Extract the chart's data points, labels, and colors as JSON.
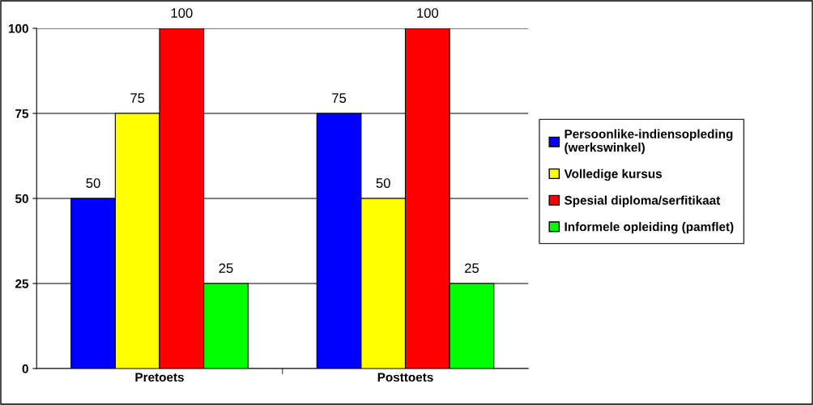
{
  "chart_data": {
    "type": "bar",
    "categories": [
      "Pretoets",
      "Posttoets"
    ],
    "series": [
      {
        "name": "Persoonlike-indiensopleding\n(werkswinkel)",
        "color": "#0000ff",
        "values": [
          50,
          75
        ]
      },
      {
        "name": "Volledige kursus",
        "color": "#ffff00",
        "values": [
          75,
          50
        ]
      },
      {
        "name": "Spesial diploma/serfitikaat",
        "color": "#ff0000",
        "values": [
          100,
          100
        ]
      },
      {
        "name": "Informele opleiding (pamflet)",
        "color": "#00ff00",
        "values": [
          25,
          25
        ]
      }
    ],
    "ylim": [
      0,
      100
    ],
    "yticks": [
      0,
      25,
      50,
      75,
      100
    ],
    "grid": "y",
    "legend": "right",
    "data_labels": true
  }
}
